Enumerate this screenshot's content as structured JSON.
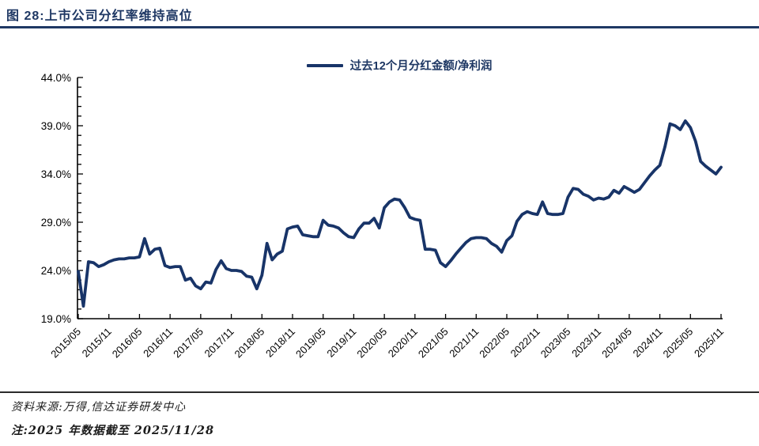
{
  "header": {
    "title": "图 28:上市公司分红率维持高位"
  },
  "footer": {
    "source": "资料来源:万得,信达证券研发中心",
    "note": "注:2025 年数据截至 2025/11/28"
  },
  "colors": {
    "line": "#183468",
    "title_navy": "#1f3864",
    "axis": "#000000"
  },
  "chart_data": {
    "type": "line",
    "title": "",
    "legend_entries": [
      "过去12个月分红金额/净利润"
    ],
    "legend_position": "top-center",
    "grid": false,
    "ylim": [
      19.0,
      44.0
    ],
    "ytick_major_step": 5.0,
    "ytick_minor_step": 1.0,
    "ytick_labels": [
      "44.0%",
      "39.0%",
      "34.0%",
      "29.0%",
      "24.0%",
      "19.0%"
    ],
    "ytick_values": [
      44,
      39,
      34,
      29,
      24,
      19
    ],
    "x_start": "2015/05",
    "x_end": "2025/11",
    "x_interval": "monthly",
    "xtick_labels": [
      "2015/05",
      "2015/11",
      "2016/05",
      "2016/11",
      "2017/05",
      "2017/11",
      "2018/05",
      "2018/11",
      "2019/05",
      "2019/11",
      "2020/05",
      "2020/11",
      "2021/05",
      "2021/11",
      "2022/05",
      "2022/11",
      "2023/05",
      "2023/11",
      "2024/05",
      "2024/11",
      "2025/05",
      "2025/11"
    ],
    "series": [
      {
        "name": "过去12个月分红金额/净利润",
        "unit": "%",
        "values": [
          23.9,
          20.3,
          24.9,
          24.8,
          24.4,
          24.6,
          24.9,
          25.1,
          25.2,
          25.2,
          25.3,
          25.3,
          25.4,
          27.3,
          25.7,
          26.2,
          26.3,
          24.5,
          24.3,
          24.4,
          24.4,
          23.0,
          23.2,
          22.4,
          22.1,
          22.8,
          22.7,
          24.1,
          25.0,
          24.2,
          24.0,
          24.0,
          23.9,
          23.4,
          23.3,
          22.1,
          23.5,
          26.8,
          25.1,
          25.7,
          26.0,
          28.3,
          28.5,
          28.6,
          27.7,
          27.6,
          27.5,
          27.5,
          29.2,
          28.7,
          28.6,
          28.4,
          27.9,
          27.5,
          27.4,
          28.3,
          28.9,
          28.9,
          29.4,
          28.4,
          30.5,
          31.1,
          31.4,
          31.3,
          30.5,
          29.5,
          29.3,
          29.2,
          26.2,
          26.2,
          26.1,
          24.8,
          24.4,
          25.0,
          25.7,
          26.3,
          26.9,
          27.3,
          27.4,
          27.4,
          27.3,
          26.8,
          26.5,
          25.9,
          27.1,
          27.6,
          29.1,
          29.8,
          30.1,
          29.9,
          29.8,
          31.1,
          29.9,
          29.8,
          29.8,
          29.9,
          31.6,
          32.5,
          32.4,
          31.9,
          31.7,
          31.3,
          31.5,
          31.4,
          31.6,
          32.3,
          32.0,
          32.7,
          32.4,
          32.1,
          32.4,
          33.1,
          33.8,
          34.4,
          34.9,
          36.8,
          39.2,
          39.0,
          38.6,
          39.5,
          38.8,
          37.4,
          35.3,
          34.8,
          34.4,
          34.0,
          34.7
        ]
      }
    ]
  }
}
